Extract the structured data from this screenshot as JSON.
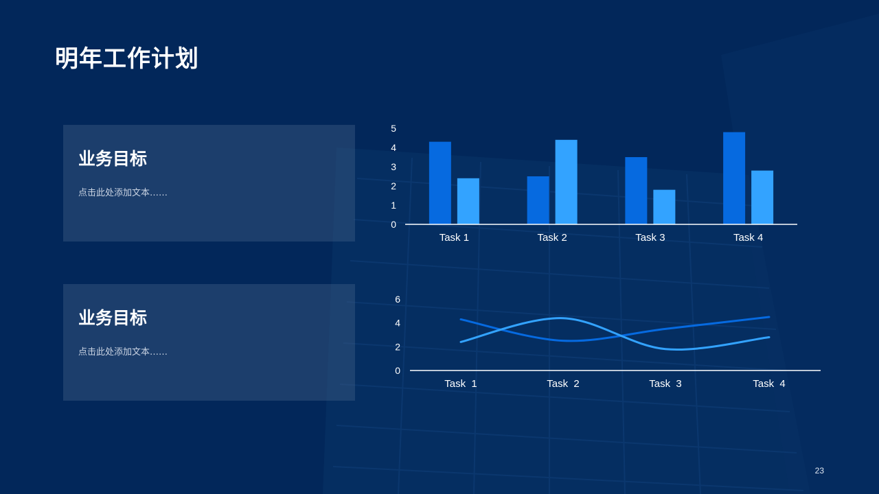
{
  "slide": {
    "title": "明年工作计划",
    "page_number": "23"
  },
  "cards": [
    {
      "heading": "业务目标",
      "text": "点击此处添加文本……"
    },
    {
      "heading": "业务目标",
      "text": "点击此处添加文本……"
    }
  ],
  "colors": {
    "background": "#02275a",
    "series_dark": "#066ae0",
    "series_light": "#33a3ff",
    "axis": "#ffffff"
  },
  "chart_data": [
    {
      "type": "bar",
      "categories": [
        "Task 1",
        "Task 2",
        "Task 3",
        "Task 4"
      ],
      "series": [
        {
          "values": [
            4.3,
            2.5,
            3.5,
            4.8
          ],
          "color": "#066ae0"
        },
        {
          "values": [
            2.4,
            4.4,
            1.8,
            2.8
          ],
          "color": "#33a3ff"
        }
      ],
      "y_ticks": [
        "0",
        "1",
        "2",
        "3",
        "4",
        "5"
      ],
      "ylim": [
        0,
        5
      ],
      "grid": false,
      "legend": "none"
    },
    {
      "type": "line",
      "categories": [
        "Task  1",
        "Task  2",
        "Task  3",
        "Task  4"
      ],
      "series": [
        {
          "values": [
            4.3,
            2.5,
            3.5,
            4.5
          ],
          "color": "#066ae0",
          "smooth": true
        },
        {
          "values": [
            2.4,
            4.4,
            1.8,
            2.8
          ],
          "color": "#33a3ff",
          "smooth": true
        }
      ],
      "y_ticks": [
        "0",
        "2",
        "4",
        "6"
      ],
      "ylim": [
        0,
        6
      ],
      "grid": false,
      "legend": "none"
    }
  ]
}
